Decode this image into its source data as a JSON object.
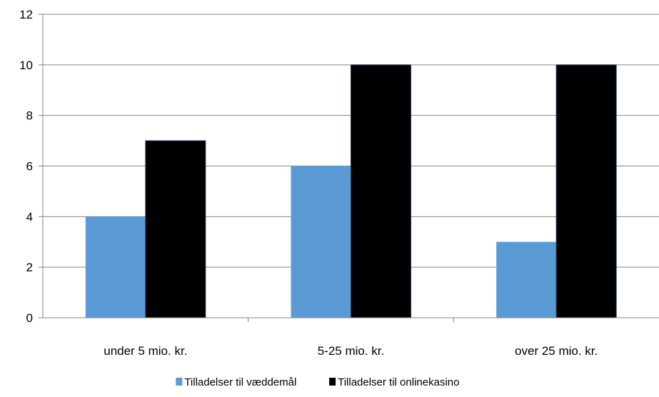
{
  "chart_data": {
    "type": "bar",
    "categories": [
      "under 5 mio. kr.",
      "5-25 mio. kr.",
      "over 25 mio. kr."
    ],
    "series": [
      {
        "name": "Tilladelser til væddemål",
        "values": [
          4,
          6,
          3
        ],
        "color": "#5b9bd5"
      },
      {
        "name": "Tilladelser til onlinekasino",
        "values": [
          7,
          10,
          10
        ],
        "color": "#000000"
      }
    ],
    "ylim": [
      0,
      12
    ],
    "yticks": [
      "0",
      "2",
      "4",
      "6",
      "8",
      "10",
      "12"
    ],
    "grid": true,
    "legend_position": "bottom"
  }
}
